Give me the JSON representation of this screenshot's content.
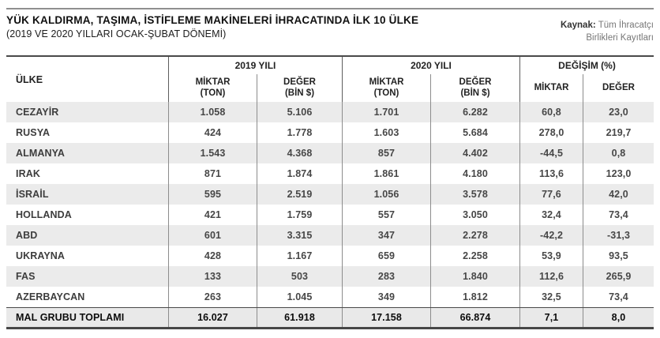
{
  "header": {
    "title": "YÜK KALDIRMA, TAŞIMA, İSTİFLEME MAKİNELERİ İHRACATINDA İLK 10 ÜLKE",
    "subtitle": "(2019 VE 2020 YILLARI OCAK-ŞUBAT DÖNEMİ)",
    "source_label": "Kaynak:",
    "source_line1": "Tüm İhracatçı",
    "source_line2": "Birlikleri Kayıtları"
  },
  "table": {
    "columns": {
      "country": "ÜLKE",
      "group_2019": "2019 YILI",
      "group_2020": "2020 YILI",
      "group_change": "DEĞİŞİM (%)",
      "miktar": "MİKTAR",
      "ton_unit": "(TON)",
      "deger": "DEĞER",
      "bin_unit": "(BİN $)"
    },
    "rows": [
      {
        "country": "CEZAYİR",
        "m2019": "1.058",
        "d2019": "5.106",
        "m2020": "1.701",
        "d2020": "6.282",
        "cm": "60,8",
        "cd": "23,0"
      },
      {
        "country": "RUSYA",
        "m2019": "424",
        "d2019": "1.778",
        "m2020": "1.603",
        "d2020": "5.684",
        "cm": "278,0",
        "cd": "219,7"
      },
      {
        "country": "ALMANYA",
        "m2019": "1.543",
        "d2019": "4.368",
        "m2020": "857",
        "d2020": "4.402",
        "cm": "-44,5",
        "cd": "0,8"
      },
      {
        "country": "IRAK",
        "m2019": "871",
        "d2019": "1.874",
        "m2020": "1.861",
        "d2020": "4.180",
        "cm": "113,6",
        "cd": "123,0"
      },
      {
        "country": "İSRAİL",
        "m2019": "595",
        "d2019": "2.519",
        "m2020": "1.056",
        "d2020": "3.578",
        "cm": "77,6",
        "cd": "42,0"
      },
      {
        "country": "HOLLANDA",
        "m2019": "421",
        "d2019": "1.759",
        "m2020": "557",
        "d2020": "3.050",
        "cm": "32,4",
        "cd": "73,4"
      },
      {
        "country": "ABD",
        "m2019": "601",
        "d2019": "3.315",
        "m2020": "347",
        "d2020": "2.278",
        "cm": "-42,2",
        "cd": "-31,3"
      },
      {
        "country": "UKRAYNA",
        "m2019": "428",
        "d2019": "1.167",
        "m2020": "659",
        "d2020": "2.258",
        "cm": "53,9",
        "cd": "93,5"
      },
      {
        "country": "FAS",
        "m2019": "133",
        "d2019": "503",
        "m2020": "283",
        "d2020": "1.840",
        "cm": "112,6",
        "cd": "265,9"
      },
      {
        "country": "AZERBAYCAN",
        "m2019": "263",
        "d2019": "1.045",
        "m2020": "349",
        "d2020": "1.812",
        "cm": "32,5",
        "cd": "73,4"
      }
    ],
    "total": {
      "country": "MAL GRUBU TOPLAMI",
      "m2019": "16.027",
      "d2019": "61.918",
      "m2020": "17.158",
      "d2020": "66.874",
      "cm": "7,1",
      "cd": "8,0"
    }
  },
  "chart_data": {
    "type": "table",
    "title": "YÜK KALDIRMA, TAŞIMA, İSTİFLEME MAKİNELERİ İHRACATINDA İLK 10 ÜLKE",
    "subtitle": "(2019 VE 2020 YILLARI OCAK-ŞUBAT DÖNEMİ)",
    "source": "Kaynak: Tüm İhracatçı Birlikleri Kayıtları",
    "columns": [
      "ÜLKE",
      "2019 YILI MİKTAR (TON)",
      "2019 YILI DEĞER (BİN $)",
      "2020 YILI MİKTAR (TON)",
      "2020 YILI DEĞER (BİN $)",
      "DEĞİŞİM MİKTAR (%)",
      "DEĞİŞİM DEĞER (%)"
    ],
    "rows": [
      [
        "CEZAYİR",
        1058,
        5106,
        1701,
        6282,
        60.8,
        23.0
      ],
      [
        "RUSYA",
        424,
        1778,
        1603,
        5684,
        278.0,
        219.7
      ],
      [
        "ALMANYA",
        1543,
        4368,
        857,
        4402,
        -44.5,
        0.8
      ],
      [
        "IRAK",
        871,
        1874,
        1861,
        4180,
        113.6,
        123.0
      ],
      [
        "İSRAİL",
        595,
        2519,
        1056,
        3578,
        77.6,
        42.0
      ],
      [
        "HOLLANDA",
        421,
        1759,
        557,
        3050,
        32.4,
        73.4
      ],
      [
        "ABD",
        601,
        3315,
        347,
        2278,
        -42.2,
        -31.3
      ],
      [
        "UKRAYNA",
        428,
        1167,
        659,
        2258,
        53.9,
        93.5
      ],
      [
        "FAS",
        133,
        503,
        283,
        1840,
        112.6,
        265.9
      ],
      [
        "AZERBAYCAN",
        263,
        1045,
        349,
        1812,
        32.5,
        73.4
      ]
    ],
    "total_row": [
      "MAL GRUBU TOPLAMI",
      16027,
      61918,
      17158,
      66874,
      7.1,
      8.0
    ]
  }
}
